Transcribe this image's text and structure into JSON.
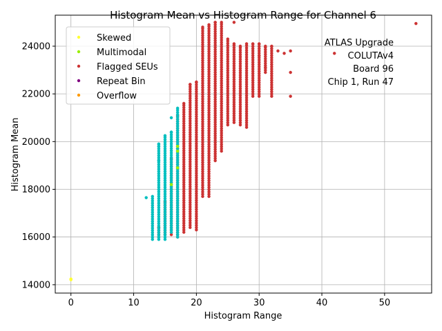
{
  "chart_data": {
    "type": "scatter",
    "title": "Histogram Mean vs Histogram Range for Channel 6",
    "xlabel": "Histogram Range",
    "ylabel": "Histogram Mean",
    "xlim": [
      -2.5,
      57.5
    ],
    "ylim": [
      13650,
      25300
    ],
    "xticks": [
      0,
      10,
      20,
      30,
      40,
      50
    ],
    "yticks": [
      14000,
      16000,
      18000,
      20000,
      22000,
      24000
    ],
    "grid": true,
    "legend_position": "top-left",
    "annotation": [
      "ATLAS Upgrade",
      "COLUTAv4",
      "Board 96",
      "Chip 1, Run 47"
    ],
    "series": [
      {
        "name": "Skewed",
        "color": "#ffff33",
        "points": [
          [
            0,
            14210
          ],
          [
            0,
            14240
          ]
        ]
      },
      {
        "name": "Multimodal",
        "color": "#99ee00",
        "points": [
          [
            17,
            19800
          ],
          [
            17,
            19600
          ],
          [
            17,
            18900
          ],
          [
            16,
            18200
          ]
        ]
      },
      {
        "name": "Flagged SEUs",
        "color": "#cc3333",
        "columns": [
          [
            14,
            16000,
            16400
          ],
          [
            15,
            16100,
            17500
          ],
          [
            16,
            16100,
            19300
          ],
          [
            17,
            16000,
            21100
          ],
          [
            18,
            16200,
            21600
          ],
          [
            19,
            16400,
            22400
          ],
          [
            20,
            16300,
            22500
          ],
          [
            21,
            17700,
            24800
          ],
          [
            22,
            17700,
            24900
          ],
          [
            23,
            19200,
            25000
          ],
          [
            24,
            19600,
            25000
          ],
          [
            25,
            20700,
            24300
          ],
          [
            26,
            20800,
            24100
          ],
          [
            27,
            20700,
            24000
          ],
          [
            28,
            20600,
            24100
          ],
          [
            29,
            21900,
            24100
          ],
          [
            30,
            21900,
            24100
          ],
          [
            31,
            22900,
            24000
          ],
          [
            32,
            21900,
            24000
          ]
        ],
        "points": [
          [
            26,
            25000
          ],
          [
            33,
            23800
          ],
          [
            34,
            23700
          ],
          [
            35,
            23800
          ],
          [
            35,
            22900
          ],
          [
            35,
            21900
          ],
          [
            42,
            23700
          ],
          [
            55,
            24950
          ],
          [
            30,
            23600
          ],
          [
            31,
            23100
          ]
        ]
      },
      {
        "name": "Repeat Bin",
        "color": "#800080",
        "points": []
      },
      {
        "name": "Overflow",
        "color": "#ff9900",
        "points": []
      }
    ],
    "unlisted_points": {
      "color": "#00bfbf",
      "columns": [
        [
          13,
          15900,
          17700
        ],
        [
          14,
          15900,
          19900
        ],
        [
          15,
          15900,
          20250
        ],
        [
          16,
          16200,
          20400
        ],
        [
          17,
          16000,
          21400
        ]
      ],
      "points": [
        [
          12,
          17650
        ],
        [
          14,
          19200
        ],
        [
          14,
          19800
        ],
        [
          16,
          21000
        ]
      ]
    }
  }
}
